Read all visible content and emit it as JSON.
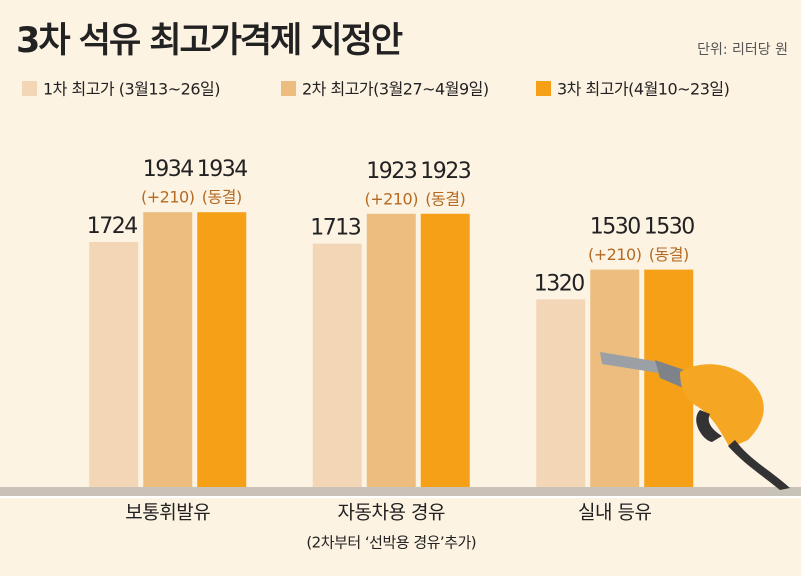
{
  "chart_data": {
    "type": "bar",
    "title": "3차 석유 최고가격제 지정안",
    "unit": "단위: 리터당 원",
    "categories": [
      "보통휘발유",
      "자동차용 경유",
      "실내 등유"
    ],
    "category_notes": [
      null,
      "(2차부터 ‘선박용 경유’추가)",
      null
    ],
    "series": [
      {
        "name": "1차 최고가 (3월13~26일)",
        "color": "#f3d6b6",
        "values": [
          1724,
          1713,
          1320
        ]
      },
      {
        "name": "2차 최고가(3월27~4월9일)",
        "color": "#ecbd7e",
        "values": [
          1934,
          1923,
          1530
        ],
        "notes": [
          "(+210)",
          "(+210)",
          "(+210)"
        ]
      },
      {
        "name": "3차 최고가(4월10~23일)",
        "color": "#f5a016",
        "values": [
          1934,
          1923,
          1530
        ],
        "notes": [
          "(동결)",
          "(동결)",
          "(동결)"
        ]
      }
    ],
    "ylim": [
      0,
      2400
    ]
  }
}
